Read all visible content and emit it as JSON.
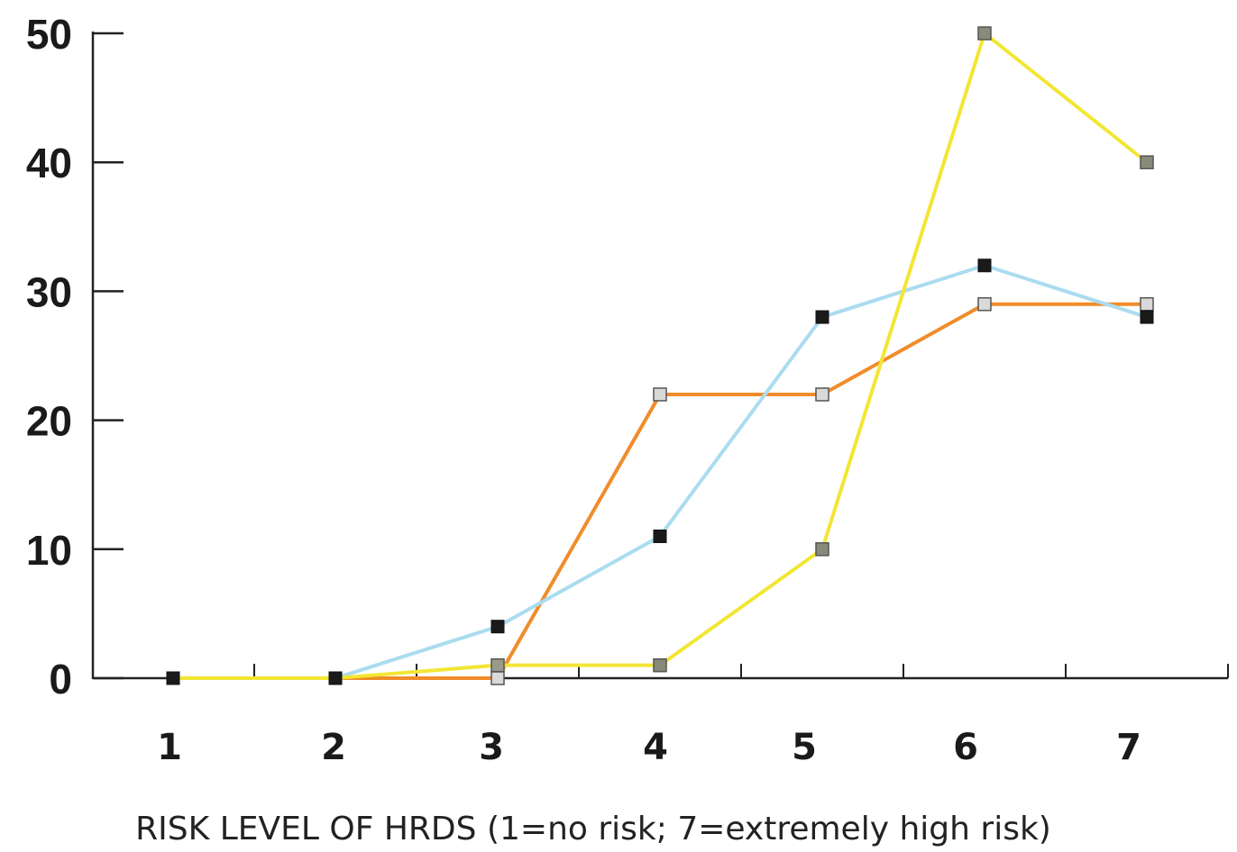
{
  "chart_data": {
    "type": "line",
    "xlabel": "RISK LEVEL OF HRDS (1=no risk; 7=extremely high risk)",
    "ylabel": "",
    "title": "",
    "x": [
      1,
      2,
      3,
      4,
      5,
      6,
      7
    ],
    "x_tick_labels": [
      "1",
      "2",
      "3",
      "4",
      "5",
      "6",
      "7"
    ],
    "y_ticks": [
      0,
      10,
      20,
      30,
      40,
      50
    ],
    "y_tick_labels": [
      "0",
      "10",
      "20",
      "30",
      "40",
      "50"
    ],
    "xlim": [
      0.5,
      7.5
    ],
    "ylim": [
      0,
      50
    ],
    "grid": false,
    "legend": "none",
    "series": [
      {
        "color": "#f08c2a",
        "marker_fill": "#d9d9d9",
        "values": [
          0,
          0,
          0,
          22,
          22,
          29,
          29
        ]
      },
      {
        "color": "#aadcef",
        "marker_fill": "#1a1a1a",
        "values": [
          0,
          0,
          4,
          11,
          28,
          32,
          28
        ]
      },
      {
        "color": "#f2e634",
        "marker_fill": "#8a8a7a",
        "values": [
          0,
          0,
          1,
          1,
          10,
          50,
          40
        ]
      }
    ],
    "marker_overrides": [
      {
        "series": 0,
        "index": 0,
        "fill": "#1a1a1a"
      },
      {
        "series": 0,
        "index": 1,
        "fill": "#1a1a1a"
      },
      {
        "series": 2,
        "index": 0,
        "fill": "#1a1a1a"
      },
      {
        "series": 2,
        "index": 1,
        "fill": "#1a1a1a"
      },
      {
        "series": 2,
        "index": 2,
        "fill": "#9a9a8a"
      }
    ]
  }
}
